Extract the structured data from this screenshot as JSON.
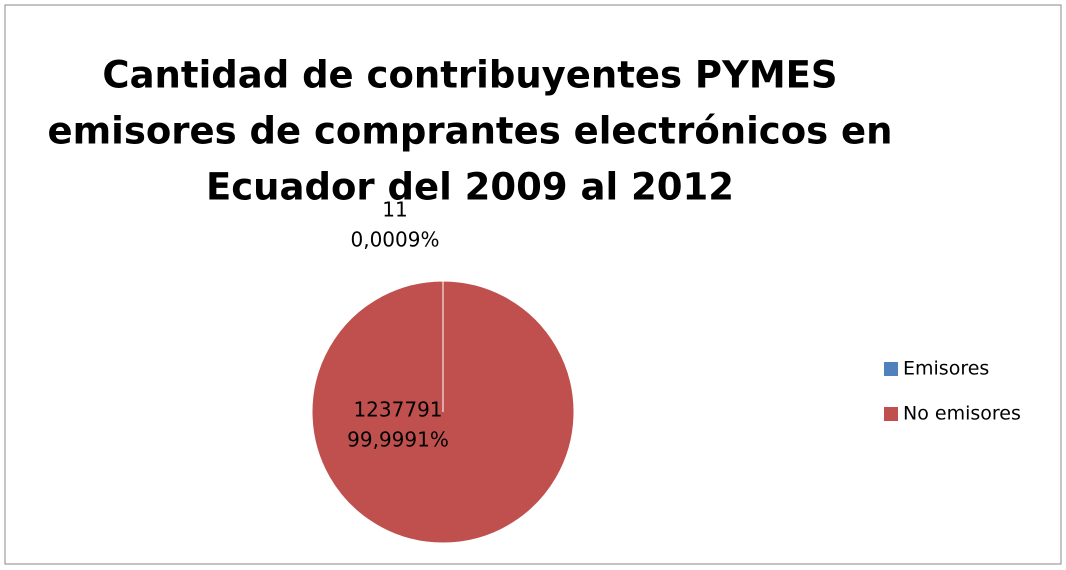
{
  "chart_data": {
    "type": "pie",
    "title": [
      "Cantidad de contribuyentes PYMES",
      "emisores de comprantes electrónicos en",
      "Ecuador del 2009 al 2012"
    ],
    "categories": [
      "Emisores",
      "No emisores"
    ],
    "values": [
      11,
      1237791
    ],
    "percent_labels": [
      "0,0009%",
      "99,9991%"
    ],
    "colors": [
      "#4f81bd",
      "#c0504d"
    ],
    "legend": "right"
  }
}
